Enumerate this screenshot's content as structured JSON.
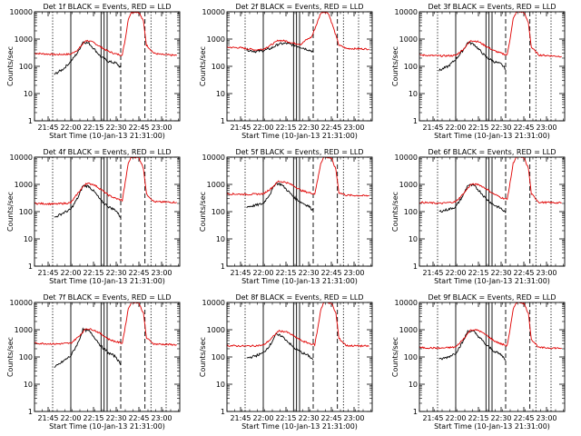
{
  "chart_data": {
    "type": "line",
    "panel_grid": "3x3",
    "y_scale": "log",
    "ylim": [
      1,
      10000
    ],
    "ylabel": "Counts/sec",
    "xlabel": "Start Time (10-Jan-13 21:31:00)",
    "x_range": [
      "21:36",
      "23:12"
    ],
    "x_ticks": [
      "21:45",
      "22:00",
      "22:15",
      "22:30",
      "22:45",
      "23:00"
    ],
    "y_ticks": [
      "1",
      "10",
      "100",
      "1000",
      "10000"
    ],
    "series": [
      {
        "name": "Events",
        "color": "#000000"
      },
      {
        "name": "LLD",
        "color": "#e00000"
      }
    ],
    "vertical_markers": {
      "dotted": [
        "21:48",
        "22:53",
        "23:03"
      ],
      "solid": [
        "22:00",
        "22:20",
        "22:22",
        "22:24"
      ],
      "dashed": [
        "22:33",
        "22:49"
      ]
    },
    "panels": [
      {
        "title": "Det 1f BLACK = Events, RED = LLD",
        "lld": {
          "time": [
            "21:36",
            "21:50",
            "22:00",
            "22:05",
            "22:10",
            "22:15",
            "22:20",
            "22:25",
            "22:30",
            "22:34",
            "22:36",
            "22:38",
            "22:40",
            "22:42",
            "22:45",
            "22:48",
            "22:50",
            "22:55",
            "23:00",
            "23:10"
          ],
          "value": [
            300,
            270,
            280,
            420,
            900,
            750,
            500,
            350,
            280,
            260,
            1000,
            5500,
            9500,
            10000,
            9500,
            4500,
            600,
            300,
            270,
            250
          ]
        },
        "events": {
          "time": [
            "21:49",
            "21:55",
            "22:00",
            "22:05",
            "22:08",
            "22:12",
            "22:16",
            "22:20",
            "22:25",
            "22:30",
            "22:33"
          ],
          "value": [
            50,
            80,
            150,
            350,
            800,
            700,
            400,
            220,
            150,
            130,
            90
          ]
        }
      },
      {
        "title": "Det 2f BLACK = Events, RED = LLD",
        "lld": {
          "time": [
            "21:36",
            "21:45",
            "21:55",
            "22:00",
            "22:05",
            "22:10",
            "22:15",
            "22:20",
            "22:25",
            "22:28",
            "22:32",
            "22:36",
            "22:38",
            "22:40",
            "22:43",
            "22:46",
            "22:50",
            "22:55",
            "23:10"
          ],
          "value": [
            500,
            480,
            400,
            430,
            600,
            900,
            850,
            700,
            650,
            900,
            1200,
            4500,
            9000,
            10000,
            9000,
            3000,
            600,
            450,
            430
          ]
        },
        "events": {
          "time": [
            "21:49",
            "21:55",
            "22:00",
            "22:05",
            "22:10",
            "22:15",
            "22:20",
            "22:25",
            "22:30",
            "22:33"
          ],
          "value": [
            400,
            350,
            380,
            450,
            650,
            700,
            600,
            500,
            400,
            350
          ]
        }
      },
      {
        "title": "Det 3f BLACK = Events, RED = LLD",
        "lld": {
          "time": [
            "21:36",
            "21:50",
            "22:00",
            "22:05",
            "22:10",
            "22:15",
            "22:20",
            "22:25",
            "22:30",
            "22:34",
            "22:36",
            "22:38",
            "22:40",
            "22:42",
            "22:45",
            "22:48",
            "22:50",
            "22:55",
            "23:10"
          ],
          "value": [
            260,
            240,
            250,
            420,
            900,
            800,
            550,
            380,
            300,
            260,
            1100,
            5500,
            9500,
            10000,
            9500,
            4000,
            500,
            260,
            230
          ]
        },
        "events": {
          "time": [
            "21:49",
            "21:55",
            "22:00",
            "22:05",
            "22:08",
            "22:12",
            "22:16",
            "22:20",
            "22:25",
            "22:30",
            "22:33"
          ],
          "value": [
            70,
            100,
            180,
            400,
            750,
            650,
            380,
            220,
            150,
            120,
            80
          ]
        }
      },
      {
        "title": "Det 4f BLACK = Events, RED = LLD",
        "lld": {
          "time": [
            "21:36",
            "21:50",
            "22:00",
            "22:05",
            "22:10",
            "22:15",
            "22:20",
            "22:25",
            "22:30",
            "22:34",
            "22:36",
            "22:38",
            "22:40",
            "22:42",
            "22:45",
            "22:48",
            "22:50",
            "22:55",
            "23:10"
          ],
          "value": [
            200,
            190,
            210,
            500,
            1100,
            1000,
            650,
            400,
            300,
            260,
            1200,
            6000,
            10000,
            10000,
            9500,
            4000,
            450,
            230,
            220
          ]
        },
        "events": {
          "time": [
            "21:49",
            "21:55",
            "22:00",
            "22:05",
            "22:08",
            "22:12",
            "22:16",
            "22:20",
            "22:25",
            "22:30",
            "22:33"
          ],
          "value": [
            60,
            90,
            120,
            350,
            900,
            850,
            500,
            250,
            150,
            110,
            60
          ]
        }
      },
      {
        "title": "Det 5f BLACK = Events, RED = LLD",
        "lld": {
          "time": [
            "21:36",
            "21:50",
            "22:00",
            "22:05",
            "22:10",
            "22:15",
            "22:20",
            "22:25",
            "22:30",
            "22:34",
            "22:36",
            "22:38",
            "22:40",
            "22:42",
            "22:45",
            "22:48",
            "22:50",
            "22:55",
            "23:10"
          ],
          "value": [
            450,
            430,
            450,
            700,
            1300,
            1200,
            900,
            600,
            500,
            450,
            1500,
            6000,
            10000,
            10000,
            9000,
            3500,
            500,
            400,
            380
          ]
        },
        "events": {
          "time": [
            "21:49",
            "21:55",
            "22:00",
            "22:05",
            "22:08",
            "22:12",
            "22:16",
            "22:20",
            "22:25",
            "22:30",
            "22:33"
          ],
          "value": [
            150,
            170,
            200,
            500,
            1100,
            1000,
            600,
            350,
            220,
            160,
            110
          ]
        }
      },
      {
        "title": "Det 6f BLACK = Events, RED = LLD",
        "lld": {
          "time": [
            "21:36",
            "21:50",
            "22:00",
            "22:05",
            "22:10",
            "22:15",
            "22:20",
            "22:25",
            "22:30",
            "22:34",
            "22:36",
            "22:38",
            "22:40",
            "22:42",
            "22:45",
            "22:48",
            "22:50",
            "22:55",
            "23:10"
          ],
          "value": [
            220,
            200,
            230,
            450,
            1000,
            1000,
            700,
            450,
            330,
            280,
            1200,
            6000,
            10000,
            10000,
            9500,
            4000,
            450,
            220,
            210
          ]
        },
        "events": {
          "time": [
            "21:49",
            "21:55",
            "22:00",
            "22:05",
            "22:08",
            "22:12",
            "22:16",
            "22:20",
            "22:25",
            "22:30",
            "22:33"
          ],
          "value": [
            100,
            120,
            150,
            400,
            950,
            900,
            550,
            300,
            180,
            130,
            90
          ]
        }
      },
      {
        "title": "Det 7f BLACK = Events, RED = LLD",
        "lld": {
          "time": [
            "21:36",
            "21:50",
            "22:00",
            "22:05",
            "22:10",
            "22:15",
            "22:20",
            "22:25",
            "22:30",
            "22:34",
            "22:36",
            "22:38",
            "22:40",
            "22:42",
            "22:45",
            "22:48",
            "22:50",
            "22:55",
            "23:10"
          ],
          "value": [
            320,
            300,
            320,
            550,
            1100,
            1000,
            700,
            450,
            360,
            320,
            1300,
            6000,
            10000,
            10000,
            9500,
            4000,
            500,
            300,
            280
          ]
        },
        "events": {
          "time": [
            "21:49",
            "21:55",
            "22:00",
            "22:05",
            "22:08",
            "22:12",
            "22:16",
            "22:20",
            "22:25",
            "22:30",
            "22:33"
          ],
          "value": [
            40,
            70,
            110,
            350,
            1000,
            900,
            500,
            250,
            140,
            100,
            50
          ]
        }
      },
      {
        "title": "Det 8f BLACK = Events, RED = LLD",
        "lld": {
          "time": [
            "21:36",
            "21:50",
            "22:00",
            "22:05",
            "22:10",
            "22:15",
            "22:20",
            "22:25",
            "22:30",
            "22:34",
            "22:36",
            "22:38",
            "22:40",
            "22:42",
            "22:45",
            "22:48",
            "22:50",
            "22:55",
            "23:10"
          ],
          "value": [
            260,
            250,
            270,
            450,
            900,
            850,
            600,
            400,
            320,
            280,
            1100,
            5500,
            10000,
            10000,
            9500,
            4000,
            480,
            260,
            250
          ]
        },
        "events": {
          "time": [
            "21:49",
            "21:55",
            "22:00",
            "22:05",
            "22:08",
            "22:12",
            "22:16",
            "22:20",
            "22:25",
            "22:30",
            "22:33"
          ],
          "value": [
            90,
            110,
            140,
            300,
            650,
            600,
            380,
            220,
            150,
            110,
            80
          ]
        }
      },
      {
        "title": "Det 9f BLACK = Events, RED = LLD",
        "lld": {
          "time": [
            "21:36",
            "21:50",
            "22:00",
            "22:05",
            "22:10",
            "22:15",
            "22:20",
            "22:25",
            "22:30",
            "22:34",
            "22:36",
            "22:38",
            "22:40",
            "22:42",
            "22:45",
            "22:48",
            "22:50",
            "22:55",
            "23:10"
          ],
          "value": [
            220,
            210,
            230,
            450,
            1000,
            950,
            650,
            400,
            300,
            260,
            1100,
            5500,
            10000,
            10000,
            9500,
            4000,
            450,
            220,
            210
          ]
        },
        "events": {
          "time": [
            "21:49",
            "21:55",
            "22:00",
            "22:05",
            "22:08",
            "22:12",
            "22:16",
            "22:20",
            "22:25",
            "22:30",
            "22:33"
          ],
          "value": [
            80,
            100,
            140,
            380,
            900,
            850,
            500,
            280,
            170,
            120,
            80
          ]
        }
      }
    ]
  }
}
